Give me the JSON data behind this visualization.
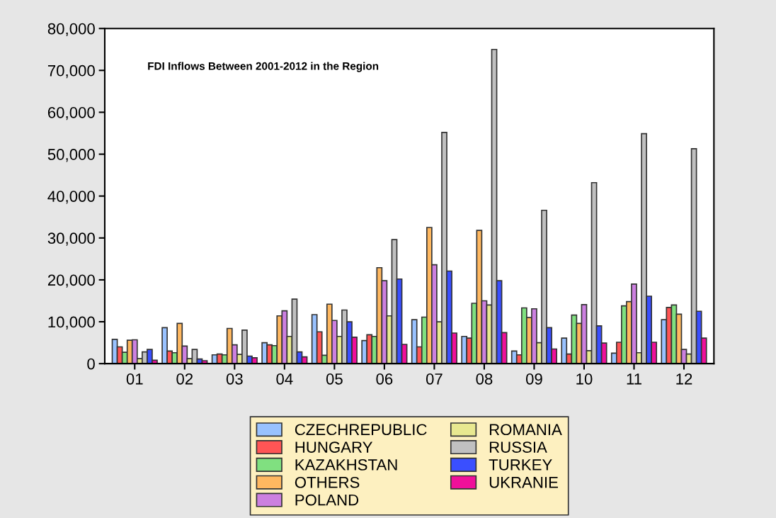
{
  "chart_data": {
    "type": "bar",
    "title": "FDI Inflows Between 2001-2012 in the Region",
    "categories": [
      "01",
      "02",
      "03",
      "04",
      "05",
      "06",
      "07",
      "08",
      "09",
      "10",
      "11",
      "12"
    ],
    "series": [
      {
        "name": "CZECHREPUBLIC",
        "color": "#99c2ff",
        "values": [
          5800,
          8600,
          2100,
          5000,
          11700,
          5500,
          10500,
          6500,
          3000,
          6100,
          2500,
          10500
        ]
      },
      {
        "name": "HUNGARY",
        "color": "#ff5555",
        "values": [
          4000,
          3000,
          2300,
          4500,
          7600,
          6900,
          4000,
          6100,
          2100,
          2300,
          5100,
          13400
        ]
      },
      {
        "name": "KAZAKHSTAN",
        "color": "#80e080",
        "values": [
          2700,
          2600,
          2100,
          4300,
          2000,
          6500,
          11100,
          14400,
          13300,
          11600,
          13800,
          14000
        ]
      },
      {
        "name": "OTHERS",
        "color": "#ffb860",
        "values": [
          5600,
          9600,
          8400,
          11400,
          14200,
          22900,
          32500,
          31800,
          11000,
          9600,
          14800,
          11800
        ]
      },
      {
        "name": "POLAND",
        "color": "#cc80e0",
        "values": [
          5700,
          4200,
          4500,
          12600,
          10300,
          19800,
          23600,
          15000,
          13100,
          14100,
          19000,
          3400
        ]
      },
      {
        "name": "ROMANIA",
        "color": "#e8e890",
        "values": [
          1200,
          1200,
          2200,
          6500,
          6500,
          11400,
          10000,
          14000,
          5000,
          3100,
          2600,
          2300
        ]
      },
      {
        "name": "RUSSIA",
        "color": "#c0c0c0",
        "values": [
          2800,
          3400,
          8000,
          15400,
          12800,
          29600,
          55200,
          75000,
          36600,
          43200,
          54900,
          51300
        ]
      },
      {
        "name": "TURKEY",
        "color": "#3a4fff",
        "values": [
          3400,
          1100,
          1800,
          2800,
          10000,
          20200,
          22100,
          19800,
          8600,
          9000,
          16100,
          12500
        ]
      },
      {
        "name": "UKRANIE",
        "color": "#f0109a",
        "values": [
          800,
          700,
          1400,
          1600,
          6300,
          4600,
          7300,
          7400,
          3500,
          4900,
          5100,
          6100
        ]
      }
    ],
    "ylim": [
      0,
      80000
    ],
    "yticks": [
      {
        "value": 0,
        "label": "0"
      },
      {
        "value": 10000,
        "label": "10,000"
      },
      {
        "value": 20000,
        "label": "20,000"
      },
      {
        "value": 30000,
        "label": "30,000"
      },
      {
        "value": 40000,
        "label": "40,000"
      },
      {
        "value": 50000,
        "label": "50,000"
      },
      {
        "value": 60000,
        "label": "60,000"
      },
      {
        "value": 70000,
        "label": "70,000"
      },
      {
        "value": 80000,
        "label": "80,000"
      }
    ],
    "grid": false,
    "legend": "bottom"
  }
}
